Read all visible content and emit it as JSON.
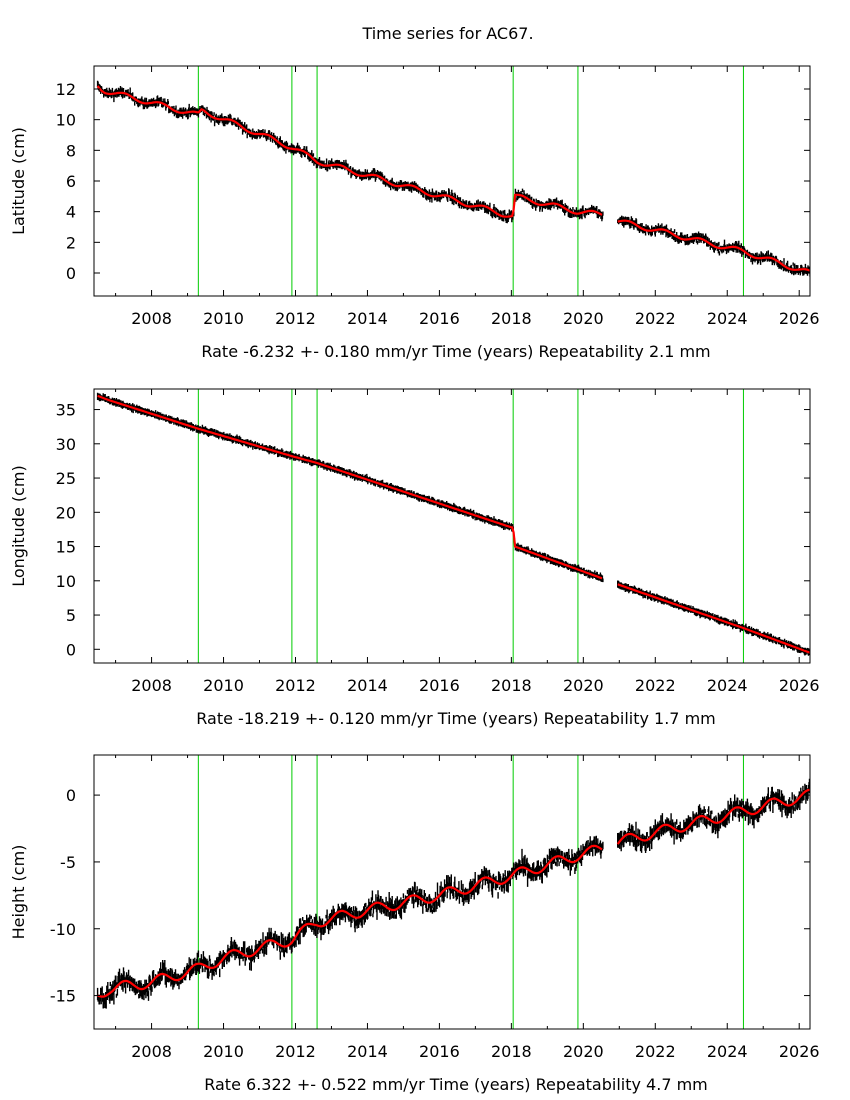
{
  "title": "Time series for AC67.",
  "colors": {
    "data": "#000000",
    "fit": "#ff0000",
    "breaks": "#00cc00",
    "axes": "#000000"
  },
  "chart_data": [
    {
      "type": "scatter",
      "ylabel": "Latitude (cm)",
      "footer": {
        "rate": "Rate -6.232 +- 0.180 mm/yr",
        "xlabel": "Time (years)",
        "repeatability": "Repeatability 2.1 mm"
      },
      "xlim": [
        2006.4,
        2026.3
      ],
      "ylim": [
        -1.5,
        13.5
      ],
      "xticks": [
        2008,
        2010,
        2012,
        2014,
        2016,
        2018,
        2020,
        2022,
        2024,
        2026
      ],
      "yticks": [
        0,
        2,
        4,
        6,
        8,
        10,
        12
      ],
      "ytick_labels": [
        "0",
        "2",
        "4",
        "6",
        "8",
        "10",
        "12"
      ],
      "breaks": [
        2009.3,
        2011.9,
        2012.6,
        2018.05,
        2019.85,
        2024.45
      ],
      "gaps": [
        [
          2020.55,
          2020.95
        ]
      ],
      "noise": 0.18,
      "series": [
        {
          "x": [
            2006.5,
            2006.6,
            2006.7,
            2009.3,
            2009.4,
            2011.9,
            2012.6,
            2018.0,
            2018.05,
            2018.1,
            2019.85,
            2020.55,
            2020.95,
            2024.45,
            2026.3
          ],
          "y": [
            12.2,
            12.0,
            11.9,
            10.3,
            10.6,
            8.2,
            7.3,
            3.7,
            3.7,
            5.0,
            4.0,
            3.8,
            3.4,
            1.4,
            0.0
          ]
        }
      ]
    },
    {
      "type": "scatter",
      "ylabel": "Longitude (cm)",
      "footer": {
        "rate": "Rate -18.219 +- 0.120 mm/yr",
        "xlabel": "Time (years)",
        "repeatability": "Repeatability 1.7 mm"
      },
      "xlim": [
        2006.4,
        2026.3
      ],
      "ylim": [
        -2,
        38
      ],
      "xticks": [
        2008,
        2010,
        2012,
        2014,
        2016,
        2018,
        2020,
        2022,
        2024,
        2026
      ],
      "yticks": [
        0,
        5,
        10,
        15,
        20,
        25,
        30,
        35
      ],
      "ytick_labels": [
        "0",
        "5",
        "10",
        "15",
        "20",
        "25",
        "30",
        "35"
      ],
      "breaks": [
        2009.3,
        2011.9,
        2012.6,
        2018.05,
        2019.85,
        2024.45
      ],
      "gaps": [
        [
          2020.55,
          2020.95
        ]
      ],
      "noise": 0.15,
      "series": [
        {
          "x": [
            2006.5,
            2006.6,
            2006.8,
            2009.3,
            2011.9,
            2012.6,
            2018.0,
            2018.05,
            2018.1,
            2020.5,
            2021.0,
            2024.45,
            2026.3
          ],
          "y": [
            37.0,
            36.8,
            36.4,
            32.2,
            28.2,
            27.2,
            17.8,
            17.8,
            15.0,
            10.4,
            9.4,
            3.1,
            -0.5
          ]
        }
      ]
    },
    {
      "type": "scatter",
      "ylabel": "Height (cm)",
      "footer": {
        "rate": "Rate 6.322 +- 0.522 mm/yr",
        "xlabel": "Time (years)",
        "repeatability": "Repeatability 4.7 mm"
      },
      "xlim": [
        2006.4,
        2026.3
      ],
      "ylim": [
        -17.5,
        3
      ],
      "xticks": [
        2008,
        2010,
        2012,
        2014,
        2016,
        2018,
        2020,
        2022,
        2024,
        2026
      ],
      "yticks": [
        -15,
        -10,
        -5,
        0
      ],
      "ytick_labels": [
        "-15",
        "-10",
        "-5",
        "0"
      ],
      "breaks": [
        2009.3,
        2011.9,
        2012.6,
        2018.05,
        2019.85,
        2024.45
      ],
      "gaps": [
        [
          2020.55,
          2020.95
        ]
      ],
      "noise": 0.45,
      "series": [
        {
          "x": [
            2006.5,
            2006.8,
            2008.0,
            2009.3,
            2010.0,
            2011.9,
            2012.6,
            2014.0,
            2016.0,
            2018.05,
            2019.85,
            2020.55,
            2021.0,
            2022.0,
            2024.45,
            2026.3
          ],
          "y": [
            -15.0,
            -14.5,
            -14.0,
            -13.0,
            -12.2,
            -10.8,
            -9.5,
            -8.6,
            -7.5,
            -6.0,
            -4.5,
            -4.0,
            -3.5,
            -2.8,
            -1.2,
            0.0
          ]
        }
      ]
    }
  ]
}
